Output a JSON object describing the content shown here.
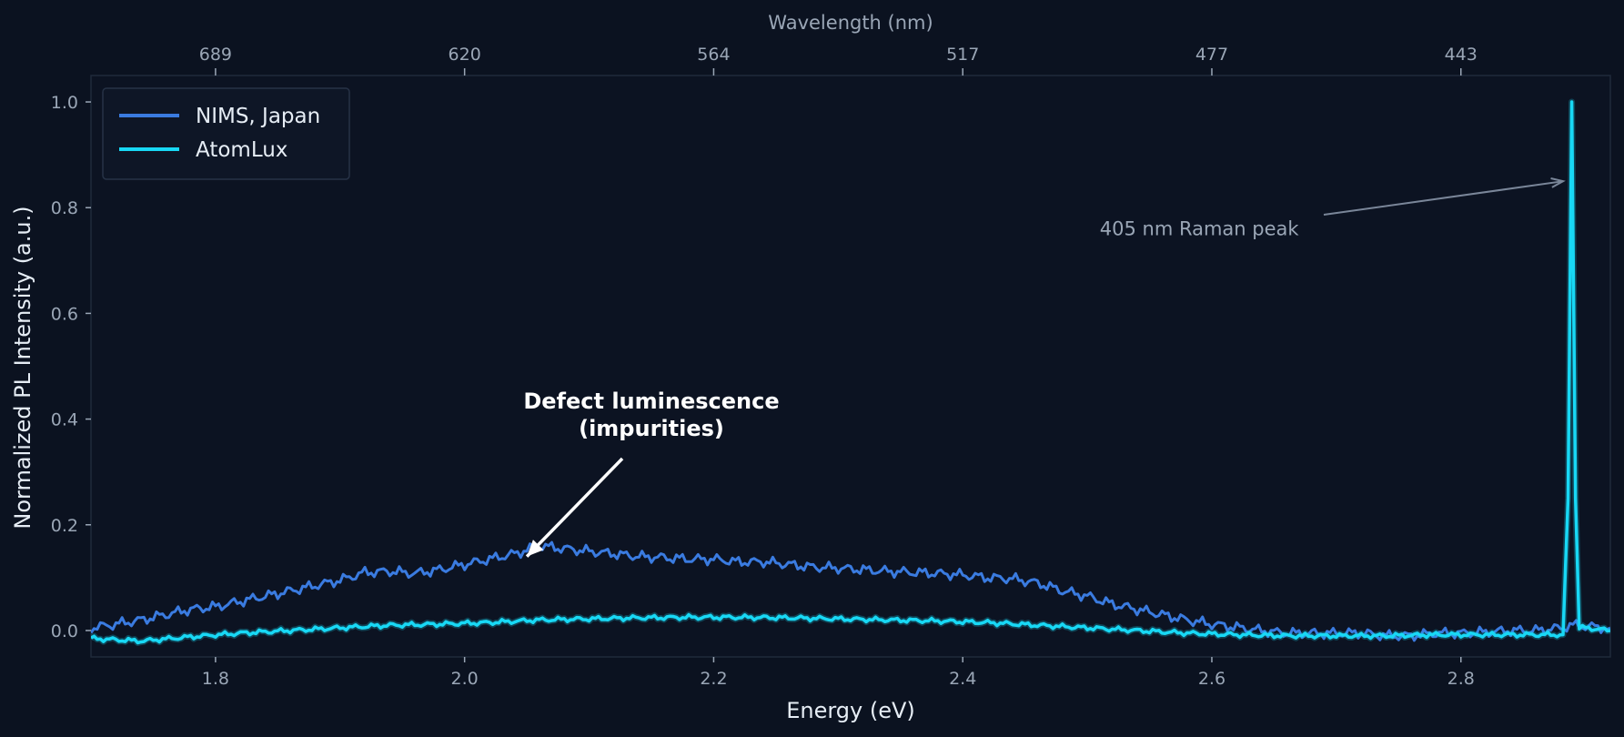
{
  "chart_data": {
    "type": "line",
    "xlabel": "Energy (eV)",
    "ylabel": "Normalized PL Intensity (a.u.)",
    "top_axis_label": "Wavelength (nm)",
    "xlim": [
      1.7,
      2.92
    ],
    "ylim": [
      -0.05,
      1.05
    ],
    "x_ticks": [
      1.8,
      2.0,
      2.2,
      2.4,
      2.6,
      2.8
    ],
    "x_tick_labels": [
      "1.8",
      "2.0",
      "2.2",
      "2.4",
      "2.6",
      "2.8"
    ],
    "y_ticks": [
      0.0,
      0.2,
      0.4,
      0.6,
      0.8,
      1.0
    ],
    "y_tick_labels": [
      "0.0",
      "0.2",
      "0.4",
      "0.6",
      "0.8",
      "1.0"
    ],
    "top_ticks_energy": [
      1.8,
      2.0,
      2.2,
      2.4,
      2.6,
      2.8
    ],
    "top_tick_labels": [
      "689",
      "620",
      "564",
      "517",
      "477",
      "443"
    ],
    "grid": true,
    "legend_position": "top-left",
    "series": [
      {
        "name": "NIMS, Japan",
        "color": "#3a7be0",
        "x": [
          1.7,
          1.72,
          1.74,
          1.76,
          1.78,
          1.8,
          1.82,
          1.84,
          1.86,
          1.88,
          1.9,
          1.92,
          1.94,
          1.96,
          1.98,
          2.0,
          2.02,
          2.04,
          2.06,
          2.08,
          2.1,
          2.12,
          2.14,
          2.16,
          2.18,
          2.2,
          2.22,
          2.24,
          2.26,
          2.28,
          2.3,
          2.32,
          2.34,
          2.36,
          2.38,
          2.4,
          2.42,
          2.44,
          2.46,
          2.48,
          2.5,
          2.52,
          2.54,
          2.56,
          2.58,
          2.6,
          2.62,
          2.64,
          2.66,
          2.68,
          2.7,
          2.72,
          2.74,
          2.76,
          2.78,
          2.8,
          2.82,
          2.84,
          2.86,
          2.88,
          2.89,
          2.9,
          2.92
        ],
        "y": [
          0.005,
          0.012,
          0.02,
          0.03,
          0.04,
          0.045,
          0.055,
          0.065,
          0.075,
          0.085,
          0.095,
          0.11,
          0.112,
          0.108,
          0.115,
          0.125,
          0.135,
          0.145,
          0.16,
          0.155,
          0.15,
          0.145,
          0.14,
          0.138,
          0.135,
          0.135,
          0.13,
          0.13,
          0.125,
          0.12,
          0.118,
          0.115,
          0.112,
          0.11,
          0.108,
          0.105,
          0.1,
          0.098,
          0.09,
          0.075,
          0.065,
          0.05,
          0.04,
          0.03,
          0.02,
          0.012,
          0.006,
          0.0,
          -0.005,
          -0.005,
          -0.005,
          -0.005,
          -0.01,
          -0.01,
          -0.005,
          -0.005,
          -0.003,
          0.0,
          0.0,
          0.005,
          0.01,
          0.008,
          0.005
        ]
      },
      {
        "name": "AtomLux",
        "color": "#18d8f5",
        "x": [
          1.7,
          1.74,
          1.78,
          1.82,
          1.86,
          1.9,
          1.94,
          1.98,
          2.02,
          2.06,
          2.1,
          2.14,
          2.18,
          2.22,
          2.26,
          2.3,
          2.34,
          2.38,
          2.42,
          2.46,
          2.5,
          2.54,
          2.58,
          2.62,
          2.66,
          2.7,
          2.74,
          2.78,
          2.82,
          2.86,
          2.882,
          2.886,
          2.889,
          2.892,
          2.895,
          2.9,
          2.92
        ],
        "y": [
          -0.015,
          -0.02,
          -0.012,
          -0.005,
          0.0,
          0.005,
          0.01,
          0.012,
          0.015,
          0.02,
          0.022,
          0.024,
          0.025,
          0.025,
          0.024,
          0.022,
          0.02,
          0.018,
          0.015,
          0.01,
          0.005,
          0.0,
          -0.005,
          -0.008,
          -0.01,
          -0.01,
          -0.01,
          -0.008,
          -0.008,
          -0.008,
          -0.008,
          0.25,
          1.0,
          0.25,
          0.005,
          0.005,
          0.0
        ]
      }
    ],
    "annotations": [
      {
        "text_lines": [
          "Defect luminescence",
          "(impurities)"
        ],
        "arrow_to": [
          2.05,
          0.14
        ],
        "text_at": [
          2.15,
          0.38
        ]
      },
      {
        "text": "405 nm Raman peak",
        "arrow_to": [
          2.885,
          0.85
        ],
        "text_at": [
          2.51,
          0.76
        ]
      }
    ]
  }
}
